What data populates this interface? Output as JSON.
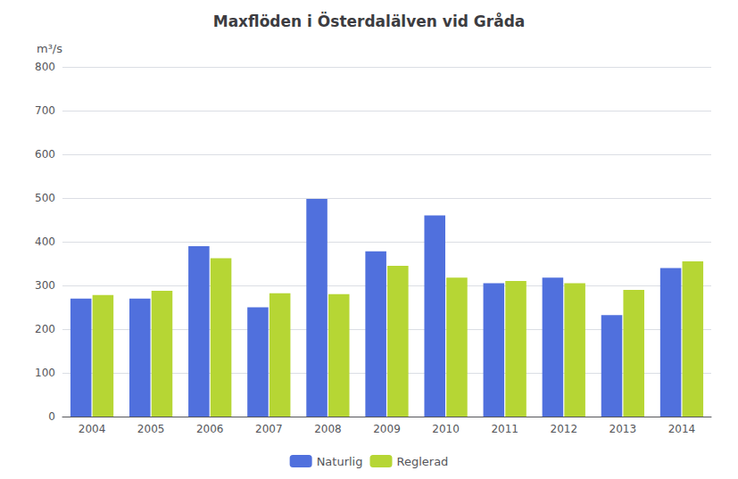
{
  "chart_data": {
    "type": "bar",
    "title": "Maxflöden i Österdalälven vid Gråda",
    "ylabel": "m³/s",
    "categories": [
      "2004",
      "2005",
      "2006",
      "2007",
      "2008",
      "2009",
      "2010",
      "2011",
      "2012",
      "2013",
      "2014"
    ],
    "series": [
      {
        "name": "Naturlig",
        "values": [
          270,
          270,
          390,
          250,
          498,
          378,
          460,
          305,
          318,
          232,
          340
        ]
      },
      {
        "name": "Reglerad",
        "values": [
          278,
          288,
          362,
          282,
          280,
          345,
          318,
          310,
          305,
          290,
          355
        ]
      }
    ],
    "ylim": [
      0,
      800
    ],
    "yticks": [
      0,
      100,
      200,
      300,
      400,
      500,
      600,
      700,
      800
    ],
    "grid": true,
    "legend": "bottom"
  }
}
